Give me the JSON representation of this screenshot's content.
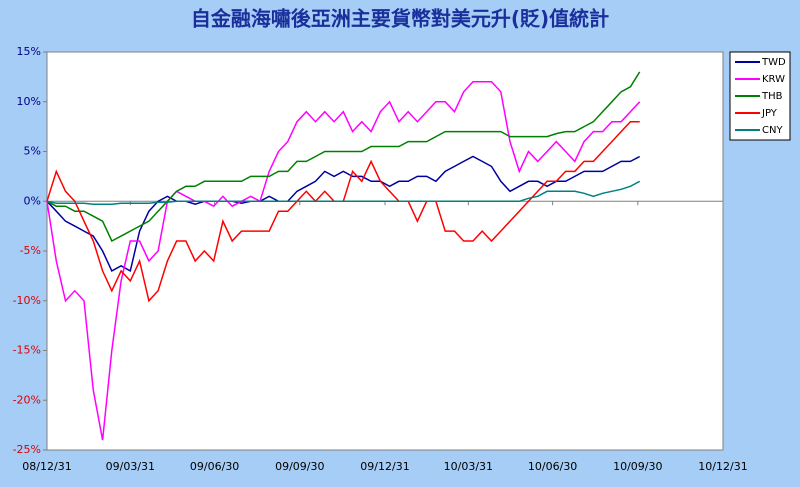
{
  "chart_data": {
    "type": "line",
    "title": "自金融海嘯後亞洲主要貨幣對美元升(貶)值統計",
    "x": [
      0,
      10,
      20,
      30,
      40,
      50,
      60,
      70,
      80,
      90,
      100,
      110,
      120,
      130,
      140,
      150,
      160,
      170,
      180,
      190,
      200,
      210,
      220,
      230,
      240,
      250,
      260,
      270,
      280,
      290,
      300,
      310,
      320,
      330,
      340,
      350,
      360,
      370,
      380,
      390,
      400,
      410,
      420,
      430,
      440,
      450,
      460,
      470,
      480,
      490,
      500,
      510,
      520,
      530,
      540,
      550,
      560,
      570,
      580,
      590,
      600,
      610,
      620,
      630,
      640
    ],
    "xlim": [
      0,
      730
    ],
    "xticks": [
      {
        "value": 0,
        "label": "08/12/31"
      },
      {
        "value": 90,
        "label": "09/03/31"
      },
      {
        "value": 181,
        "label": "09/06/30"
      },
      {
        "value": 273,
        "label": "09/09/30"
      },
      {
        "value": 365,
        "label": "09/12/31"
      },
      {
        "value": 455,
        "label": "10/03/31"
      },
      {
        "value": 546,
        "label": "10/06/30"
      },
      {
        "value": 638,
        "label": "10/09/30"
      },
      {
        "value": 730,
        "label": "10/12/31"
      }
    ],
    "ylim": [
      -25,
      15
    ],
    "yticks": [
      {
        "value": -25,
        "label": "-25%"
      },
      {
        "value": -20,
        "label": "-20%"
      },
      {
        "value": -15,
        "label": "-15%"
      },
      {
        "value": -10,
        "label": "-10%"
      },
      {
        "value": -5,
        "label": "-5%"
      },
      {
        "value": 0,
        "label": "0%"
      },
      {
        "value": 5,
        "label": "5%"
      },
      {
        "value": 10,
        "label": "10%"
      },
      {
        "value": 15,
        "label": "15%"
      }
    ],
    "legend": "right",
    "series": [
      {
        "name": "TWD",
        "color": "#0000a0",
        "values": [
          0,
          -1,
          -2,
          -2.5,
          -3,
          -3.5,
          -5,
          -7,
          -6.5,
          -7,
          -3,
          -1,
          0,
          0.5,
          0,
          0,
          -0.3,
          0,
          0,
          0,
          0,
          -0.2,
          0,
          0,
          0.5,
          0,
          0,
          1,
          1.5,
          2,
          3,
          2.5,
          3,
          2.5,
          2.5,
          2,
          2,
          1.5,
          2,
          2,
          2.5,
          2.5,
          2,
          3,
          3.5,
          4,
          4.5,
          4,
          3.5,
          2,
          1,
          1.5,
          2,
          2,
          1.5,
          2,
          2,
          2.5,
          3,
          3,
          3,
          3.5,
          4,
          4,
          4.5
        ]
      },
      {
        "name": "KRW",
        "color": "#ff00ff",
        "values": [
          0,
          -6,
          -10,
          -9,
          -10,
          -19,
          -24,
          -15,
          -8,
          -4,
          -4,
          -6,
          -5,
          0,
          1,
          0.5,
          0,
          0,
          -0.5,
          0.5,
          -0.5,
          0,
          0.5,
          0,
          3,
          5,
          6,
          8,
          9,
          8,
          9,
          8,
          9,
          7,
          8,
          7,
          9,
          10,
          8,
          9,
          8,
          9,
          10,
          10,
          9,
          11,
          12,
          12,
          12,
          11,
          6,
          3,
          5,
          4,
          5,
          6,
          5,
          4,
          6,
          7,
          7,
          8,
          8,
          9,
          10
        ]
      },
      {
        "name": "THB",
        "color": "#008000",
        "values": [
          0,
          -0.5,
          -0.5,
          -1,
          -1,
          -1.5,
          -2,
          -4,
          -3.5,
          -3,
          -2.5,
          -2,
          -1,
          0,
          1,
          1.5,
          1.5,
          2,
          2,
          2,
          2,
          2,
          2.5,
          2.5,
          2.5,
          3,
          3,
          4,
          4,
          4.5,
          5,
          5,
          5,
          5,
          5,
          5.5,
          5.5,
          5.5,
          5.5,
          6,
          6,
          6,
          6.5,
          7,
          7,
          7,
          7,
          7,
          7,
          7,
          6.5,
          6.5,
          6.5,
          6.5,
          6.5,
          6.8,
          7,
          7,
          7.5,
          8,
          9,
          10,
          11,
          11.5,
          13
        ]
      },
      {
        "name": "JPY",
        "color": "#ff0000",
        "values": [
          0,
          3,
          1,
          0,
          -2,
          -4,
          -7,
          -9,
          -7,
          -8,
          -6,
          -10,
          -9,
          -6,
          -4,
          -4,
          -6,
          -5,
          -6,
          -2,
          -4,
          -3,
          -3,
          -3,
          -3,
          -1,
          -1,
          0,
          1,
          0,
          1,
          0,
          0,
          3,
          2,
          4,
          2,
          1,
          0,
          0,
          -2,
          0,
          0,
          -3,
          -3,
          -4,
          -4,
          -3,
          -4,
          -3,
          -2,
          -1,
          0,
          1,
          2,
          2,
          3,
          3,
          4,
          4,
          5,
          6,
          7,
          8,
          8
        ]
      },
      {
        "name": "CNY",
        "color": "#008080",
        "values": [
          0,
          -0.2,
          -0.2,
          -0.2,
          -0.2,
          -0.3,
          -0.3,
          -0.3,
          -0.2,
          -0.2,
          -0.2,
          -0.2,
          -0.1,
          -0.1,
          0,
          0,
          0,
          0,
          0,
          0,
          0,
          0,
          0,
          0,
          0,
          0,
          0,
          0,
          0,
          0,
          0,
          0,
          0,
          0,
          0,
          0,
          0,
          0,
          0,
          0,
          0,
          0,
          0,
          0,
          0,
          0,
          0,
          0,
          0,
          0,
          0,
          0,
          0.3,
          0.5,
          1,
          1,
          1,
          1,
          0.8,
          0.5,
          0.8,
          1,
          1.2,
          1.5,
          2
        ]
      }
    ]
  }
}
